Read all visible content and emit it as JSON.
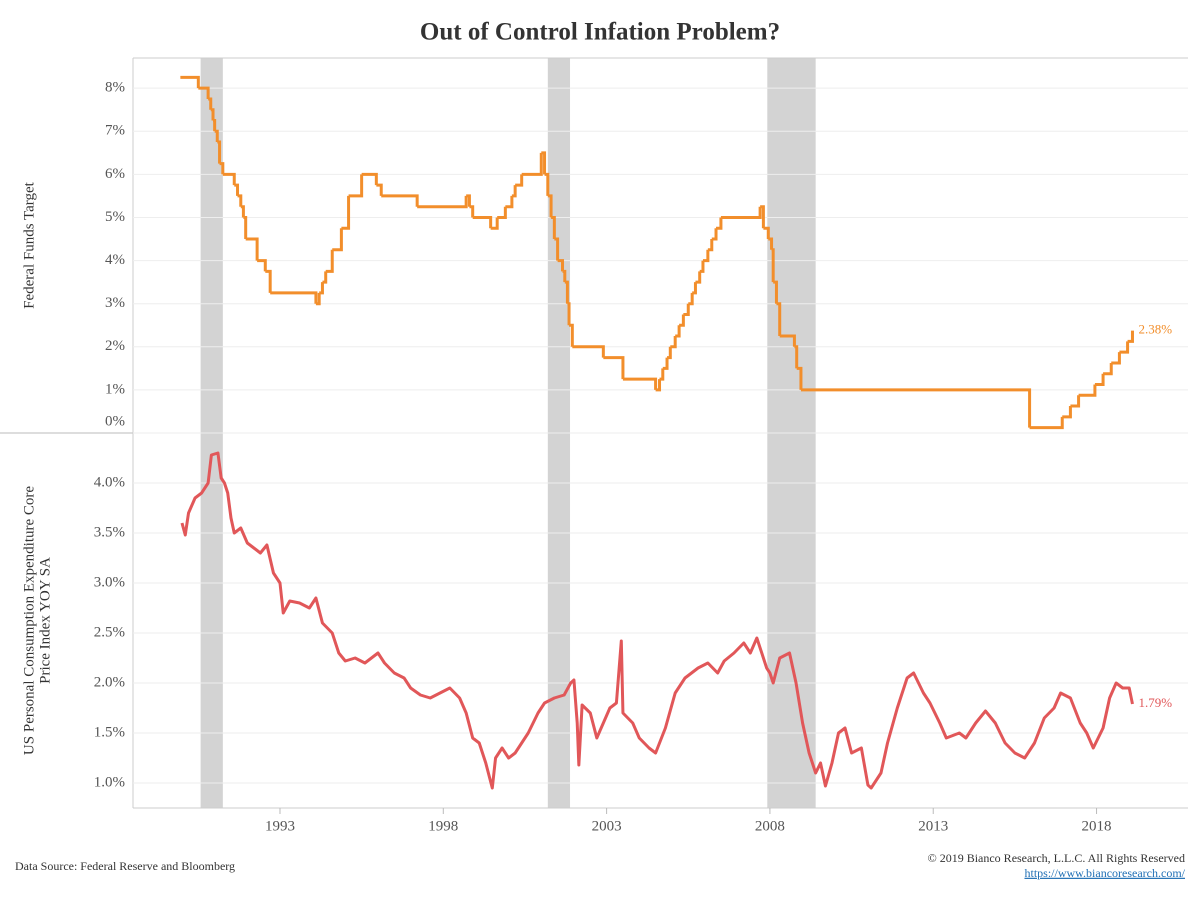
{
  "chart_data": {
    "type": "line",
    "title": "Out of Control Infation Problem?",
    "xlim": [
      1988.5,
      2020.8
    ],
    "xticks": [
      1993,
      1998,
      2003,
      2008,
      2013,
      2018
    ],
    "shaded_periods": [
      [
        1990.57,
        1991.25
      ],
      [
        2001.2,
        2001.88
      ],
      [
        2007.92,
        2009.4
      ]
    ],
    "panels": [
      {
        "ylabel": [
          "Federal Funds Target"
        ],
        "ylim": [
          0,
          8.7
        ],
        "yticks": [
          {
            "value": 0,
            "label": "0%"
          },
          {
            "value": 1,
            "label": "1%"
          },
          {
            "value": 2,
            "label": "2%"
          },
          {
            "value": 3,
            "label": "3%"
          },
          {
            "value": 4,
            "label": "4%"
          },
          {
            "value": 5,
            "label": "5%"
          },
          {
            "value": 6,
            "label": "6%"
          },
          {
            "value": 7,
            "label": "7%"
          },
          {
            "value": 8,
            "label": "8%"
          }
        ],
        "step": true,
        "series": [
          {
            "color": "#f28e2b",
            "last_value_label": "2.38%",
            "x": [
              1989.95,
              1990.5,
              1990.8,
              1990.88,
              1990.95,
              1991.0,
              1991.08,
              1991.15,
              1991.25,
              1991.6,
              1991.7,
              1991.8,
              1991.88,
              1991.95,
              1992.3,
              1992.55,
              1992.7,
              1994.1,
              1994.2,
              1994.3,
              1994.4,
              1994.6,
              1994.88,
              1995.1,
              1995.5,
              1995.95,
              1996.1,
              1997.2,
              1998.7,
              1998.8,
              1998.9,
              1999.45,
              1999.65,
              1999.9,
              2000.1,
              2000.2,
              2000.4,
              2001.0,
              2001.1,
              2001.2,
              2001.3,
              2001.4,
              2001.5,
              2001.65,
              2001.72,
              2001.8,
              2001.85,
              2001.95,
              2002.9,
              2003.5,
              2004.5,
              2004.62,
              2004.72,
              2004.85,
              2004.95,
              2005.1,
              2005.22,
              2005.35,
              2005.5,
              2005.62,
              2005.72,
              2005.85,
              2005.95,
              2006.1,
              2006.22,
              2006.35,
              2006.5,
              2007.7,
              2007.8,
              2007.95,
              2008.05,
              2008.1,
              2008.2,
              2008.3,
              2008.75,
              2008.82,
              2008.95,
              2015.95,
              2016.95,
              2017.2,
              2017.45,
              2017.95,
              2018.2,
              2018.45,
              2018.7,
              2018.95,
              2019.1
            ],
            "values": [
              8.25,
              8.0,
              7.75,
              7.5,
              7.25,
              7.0,
              6.75,
              6.25,
              6.0,
              5.75,
              5.5,
              5.25,
              5.0,
              4.5,
              4.0,
              3.75,
              3.25,
              3.0,
              3.25,
              3.5,
              3.75,
              4.25,
              4.75,
              5.5,
              6.0,
              5.75,
              5.5,
              5.25,
              5.5,
              5.25,
              5.0,
              4.75,
              5.0,
              5.25,
              5.5,
              5.75,
              6.0,
              6.5,
              6.0,
              5.5,
              5.0,
              4.5,
              4.0,
              3.75,
              3.5,
              3.0,
              2.5,
              2.0,
              1.75,
              1.25,
              1.0,
              1.25,
              1.5,
              1.75,
              2.0,
              2.25,
              2.5,
              2.75,
              3.0,
              3.25,
              3.5,
              3.75,
              4.0,
              4.25,
              4.5,
              4.75,
              5.0,
              5.25,
              4.75,
              4.5,
              4.25,
              3.5,
              3.0,
              2.25,
              2.0,
              1.5,
              1.0,
              0.125,
              0.375,
              0.625,
              0.875,
              1.125,
              1.375,
              1.625,
              1.875,
              2.125,
              2.375
            ]
          }
        ]
      },
      {
        "ylabel": [
          "US Personal Consumption Expenditure Core",
          "Price Index YOY SA"
        ],
        "ylim": [
          0.75,
          4.5
        ],
        "yticks": [
          {
            "value": 1,
            "label": "1.0%"
          },
          {
            "value": 1.5,
            "label": "1.5%"
          },
          {
            "value": 2,
            "label": "2.0%"
          },
          {
            "value": 2.5,
            "label": "2.5%"
          },
          {
            "value": 3,
            "label": "3.0%"
          },
          {
            "value": 3.5,
            "label": "3.5%"
          },
          {
            "value": 4,
            "label": "4.0%"
          }
        ],
        "step": false,
        "series": [
          {
            "color": "#e15759",
            "last_value_label": "1.79%",
            "x": [
              1990.0,
              1990.1,
              1990.2,
              1990.4,
              1990.6,
              1990.8,
              1990.9,
              1991.1,
              1991.2,
              1991.3,
              1991.4,
              1991.5,
              1991.6,
              1991.8,
              1992.0,
              1992.2,
              1992.4,
              1992.6,
              1992.8,
              1993.0,
              1993.1,
              1993.3,
              1993.6,
              1993.9,
              1994.1,
              1994.3,
              1994.6,
              1994.8,
              1995.0,
              1995.3,
              1995.6,
              1996.0,
              1996.2,
              1996.5,
              1996.8,
              1997.0,
              1997.3,
              1997.6,
              1997.9,
              1998.2,
              1998.5,
              1998.7,
              1998.9,
              1999.1,
              1999.3,
              1999.5,
              1999.6,
              1999.8,
              2000.0,
              2000.2,
              2000.4,
              2000.6,
              2000.9,
              2001.1,
              2001.4,
              2001.7,
              2001.9,
              2002.0,
              2002.1,
              2002.15,
              2002.25,
              2002.5,
              2002.7,
              2002.9,
              2003.1,
              2003.3,
              2003.45,
              2003.5,
              2003.8,
              2004.0,
              2004.3,
              2004.5,
              2004.8,
              2005.1,
              2005.4,
              2005.8,
              2006.1,
              2006.4,
              2006.6,
              2006.9,
              2007.2,
              2007.4,
              2007.6,
              2007.9,
              2008.0,
              2008.1,
              2008.3,
              2008.6,
              2008.8,
              2009.0,
              2009.2,
              2009.4,
              2009.55,
              2009.7,
              2009.9,
              2010.1,
              2010.3,
              2010.5,
              2010.8,
              2011.0,
              2011.1,
              2011.4,
              2011.6,
              2011.9,
              2012.2,
              2012.4,
              2012.7,
              2012.9,
              2013.2,
              2013.4,
              2013.8,
              2014.0,
              2014.3,
              2014.6,
              2014.9,
              2015.2,
              2015.5,
              2015.8,
              2016.1,
              2016.4,
              2016.7,
              2016.9,
              2017.2,
              2017.5,
              2017.7,
              2017.9,
              2018.2,
              2018.4,
              2018.6,
              2018.8,
              2019.0,
              2019.1
            ],
            "values": [
              3.6,
              3.48,
              3.7,
              3.85,
              3.9,
              4.0,
              4.28,
              4.3,
              4.05,
              4.0,
              3.9,
              3.65,
              3.5,
              3.55,
              3.4,
              3.35,
              3.3,
              3.38,
              3.1,
              3.0,
              2.7,
              2.82,
              2.8,
              2.75,
              2.85,
              2.6,
              2.5,
              2.3,
              2.22,
              2.25,
              2.2,
              2.3,
              2.2,
              2.1,
              2.05,
              1.95,
              1.88,
              1.85,
              1.9,
              1.95,
              1.85,
              1.7,
              1.45,
              1.4,
              1.2,
              0.95,
              1.25,
              1.35,
              1.25,
              1.3,
              1.4,
              1.5,
              1.7,
              1.8,
              1.85,
              1.88,
              2.0,
              2.03,
              1.6,
              1.18,
              1.78,
              1.7,
              1.45,
              1.6,
              1.75,
              1.8,
              2.42,
              1.7,
              1.6,
              1.45,
              1.35,
              1.3,
              1.55,
              1.9,
              2.05,
              2.15,
              2.2,
              2.1,
              2.22,
              2.3,
              2.4,
              2.3,
              2.45,
              2.15,
              2.1,
              2.0,
              2.25,
              2.3,
              2.0,
              1.6,
              1.3,
              1.1,
              1.2,
              0.97,
              1.2,
              1.5,
              1.55,
              1.3,
              1.35,
              0.98,
              0.95,
              1.1,
              1.4,
              1.75,
              2.05,
              2.1,
              1.9,
              1.8,
              1.6,
              1.45,
              1.5,
              1.45,
              1.6,
              1.72,
              1.6,
              1.4,
              1.3,
              1.25,
              1.4,
              1.65,
              1.75,
              1.9,
              1.85,
              1.6,
              1.5,
              1.35,
              1.55,
              1.85,
              2.0,
              1.95,
              1.95,
              1.79
            ]
          }
        ]
      }
    ],
    "source": "Data Source: Federal Reserve and Bloomberg",
    "copyright": "© 2019 Bianco Research, L.L.C. All Rights Reserved",
    "link": "https://www.biancoresearch.com/"
  }
}
